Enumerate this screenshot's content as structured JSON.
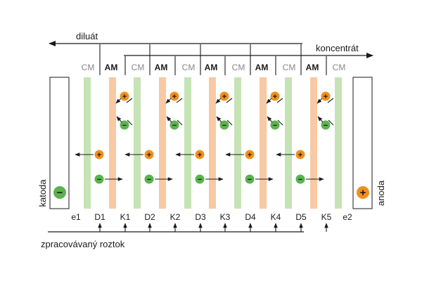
{
  "colors": {
    "cm_fill": "#c6e3b5",
    "am_fill": "#f8c9a3",
    "cation": "#f0901e",
    "anion": "#5ab34d",
    "line": "#1a1a1a",
    "cm_label": "#888888",
    "am_label": "#1a1a1a"
  },
  "flows": {
    "diluate": "diluát",
    "concentrate": "koncentrát",
    "feed": "zpracovávaný roztok"
  },
  "electrodes": {
    "cathode": {
      "label": "katoda",
      "symbol": "−",
      "icon": "anion-circle-icon"
    },
    "anode": {
      "label": "anoda",
      "symbol": "+",
      "icon": "cation-circle-icon"
    }
  },
  "membranes": [
    {
      "type": "CM"
    },
    {
      "type": "AM"
    },
    {
      "type": "CM"
    },
    {
      "type": "AM"
    },
    {
      "type": "CM"
    },
    {
      "type": "AM"
    },
    {
      "type": "CM"
    },
    {
      "type": "AM"
    },
    {
      "type": "CM"
    },
    {
      "type": "AM"
    },
    {
      "type": "CM"
    }
  ],
  "chambers": [
    "e1",
    "D1",
    "K1",
    "D2",
    "K2",
    "D3",
    "K3",
    "D4",
    "K4",
    "D5",
    "K5",
    "e2"
  ],
  "ions": {
    "cation": "+",
    "anion": "−"
  }
}
